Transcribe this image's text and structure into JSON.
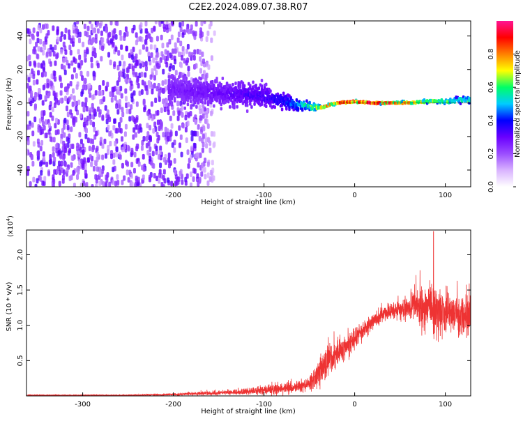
{
  "page": {
    "title": "C2E2.2024.089.07.38.R07"
  },
  "chart_data": [
    {
      "type": "heatmap",
      "xlabel": "Height of straight line (km)",
      "ylabel": "Frequency (Hz)",
      "xlim": [
        -362,
        128
      ],
      "ylim": [
        -50,
        49
      ],
      "xticks": [
        -300,
        -200,
        -100,
        0,
        100
      ],
      "xtick_labels": [
        "-300",
        "-200",
        "-100",
        "0",
        "100"
      ],
      "yticks": [
        -40,
        -20,
        0,
        20,
        40
      ],
      "ytick_labels": [
        "-40",
        "-20",
        "0",
        "20",
        "40"
      ],
      "track": {
        "x": [
          -200,
          -150,
          -120,
          -100,
          -80,
          -60,
          -40,
          -20,
          0,
          20,
          40,
          60,
          80,
          100,
          128
        ],
        "center_hz": [
          8,
          6,
          5,
          4,
          1,
          -1,
          -3,
          0,
          1,
          0,
          0,
          0,
          1,
          1,
          2
        ],
        "spread_hz": [
          14,
          14,
          13,
          12,
          9,
          6,
          3,
          1,
          1,
          1,
          1,
          2,
          2,
          3,
          3
        ],
        "amplitude": [
          0.12,
          0.15,
          0.2,
          0.22,
          0.3,
          0.45,
          0.7,
          0.9,
          1.0,
          1.0,
          0.9,
          0.75,
          0.7,
          0.6,
          0.55
        ]
      },
      "noise": {
        "x_start": -362,
        "x_end": -175,
        "amplitude": 0.1
      },
      "grid": false,
      "colorbar": {
        "label": "Normalized spectral amplitude",
        "range": [
          0,
          1
        ],
        "ticks": [
          0.0,
          0.2,
          0.4,
          0.6,
          0.8
        ],
        "tick_labels": [
          "0.0",
          "0.2",
          "0.4",
          "0.6",
          "0.8"
        ],
        "colors": [
          "#ffffff",
          "#d9b3ff",
          "#9b4dff",
          "#6a00ff",
          "#0000ff",
          "#00ccff",
          "#00ff66",
          "#ffff00",
          "#ff8000",
          "#ff0000",
          "#ff1493"
        ]
      }
    },
    {
      "type": "line",
      "xlabel": "Height of straight line (km)",
      "ylabel": "SNR (10 * v/v)",
      "y_multiplier_label": "(x10",
      "y_multiplier_exp": "4",
      "y_multiplier_close": ")",
      "xlim": [
        -362,
        128
      ],
      "ylim": [
        0,
        2.35
      ],
      "xticks": [
        -300,
        -200,
        -100,
        0,
        100
      ],
      "xtick_labels": [
        "-300",
        "-200",
        "-100",
        "0",
        "100"
      ],
      "yticks": [
        0.5,
        1.0,
        1.5,
        2.0
      ],
      "ytick_labels": [
        "0.5",
        "1.0",
        "1.5",
        "2.0"
      ],
      "grid": false,
      "color": "#ee3333",
      "envelope": {
        "x": [
          -362,
          -300,
          -250,
          -200,
          -180,
          -150,
          -120,
          -100,
          -80,
          -60,
          -50,
          -40,
          -30,
          -20,
          -10,
          0,
          10,
          20,
          30,
          40,
          60,
          70,
          80,
          90,
          100,
          110,
          128
        ],
        "mean": [
          0.01,
          0.01,
          0.01,
          0.02,
          0.03,
          0.04,
          0.06,
          0.08,
          0.1,
          0.12,
          0.18,
          0.3,
          0.5,
          0.6,
          0.7,
          0.82,
          0.95,
          1.05,
          1.15,
          1.2,
          1.25,
          1.28,
          1.25,
          1.2,
          1.18,
          1.15,
          1.1
        ],
        "noise": [
          0.005,
          0.005,
          0.008,
          0.015,
          0.02,
          0.03,
          0.04,
          0.06,
          0.08,
          0.08,
          0.1,
          0.2,
          0.22,
          0.2,
          0.18,
          0.15,
          0.12,
          0.1,
          0.1,
          0.12,
          0.15,
          0.25,
          0.35,
          0.4,
          0.3,
          0.3,
          0.3
        ]
      },
      "peak": {
        "x": 87,
        "y": 2.33
      }
    }
  ]
}
